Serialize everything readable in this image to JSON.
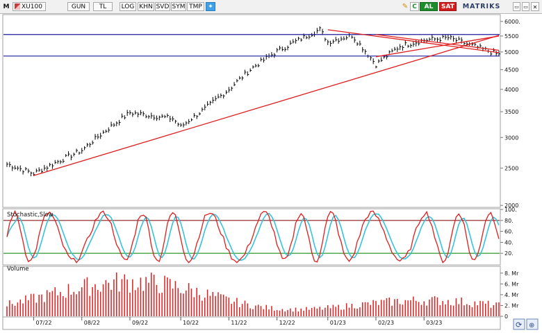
{
  "toolbar": {
    "mode_label": "M",
    "symbol": "XU100",
    "period": "GUN",
    "currency": "TL",
    "buttons": [
      "LOG",
      "KHN",
      "SVD",
      "SYM",
      "TMP"
    ],
    "c_label": "C",
    "buy_label": "AL",
    "sell_label": "SAT",
    "brand": "MATRIKS",
    "window_buttons": [
      "▭",
      "▭",
      "✕"
    ],
    "twitter_icon": "twitter-bird-icon",
    "pencil_icon": "pencil-icon"
  },
  "colors": {
    "price": "#000000",
    "horizontal_lines": "#1a1a9c",
    "trend_lines": "#e01c1c",
    "stoch_k": "#e01c1c",
    "stoch_d": "#34c3dc",
    "stoch_upper": "#8b1a1a",
    "stoch_lower": "#1a8c1a",
    "volume": "#e01c1c"
  },
  "chart_data": {
    "type": "line",
    "panes": {
      "price": {
        "title": "",
        "y_scale": "log",
        "y_ticks": [
          2000,
          2500,
          3000,
          3500,
          4000,
          4500,
          5000,
          5500,
          6000
        ],
        "y_tick_labels": [
          "2000",
          "2500",
          "3000",
          "3500",
          "4000",
          "4500",
          "5000",
          "5500",
          "6000."
        ],
        "ylim": [
          1985,
          6200
        ],
        "horizontal_levels": [
          5550,
          4880
        ],
        "trend_lines": [
          {
            "from": [
              "07/22",
              2390
            ],
            "to": [
              "03/23",
              5520
            ]
          },
          {
            "from": [
              "01/23",
              5710
            ],
            "to": [
              "03/23",
              4980
            ]
          },
          {
            "from": [
              "02/23",
              4860
            ],
            "to": [
              "03/23",
              5500
            ]
          },
          {
            "from": [
              "02/23",
              5550
            ],
            "to": [
              "03/23",
              5050
            ]
          }
        ],
        "series_keypoints": [
          [
            "start",
            2560
          ],
          [
            "07/22",
            2420
          ],
          [
            "08/22",
            2780
          ],
          [
            "09/22",
            3480
          ],
          [
            "end 09/22",
            3360
          ],
          [
            "10/22",
            3200
          ],
          [
            "mid 10/22",
            3560
          ],
          [
            "11/22",
            4000
          ],
          [
            "mid 11/22",
            4560
          ],
          [
            "12/22",
            5020
          ],
          [
            "mid 12/22",
            5410
          ],
          [
            "end 12/22",
            5720
          ],
          [
            "01/23",
            5310
          ],
          [
            "mid 01/23",
            5520
          ],
          [
            "02/23",
            4640
          ],
          [
            "mid 02/23",
            5180
          ],
          [
            "03/23",
            5370
          ],
          [
            "mid 03/23",
            5440
          ],
          [
            "end",
            4920
          ]
        ]
      },
      "stochastic": {
        "title": "Stochastic,Slow",
        "y_ticks": [
          20,
          40,
          60,
          80,
          100
        ],
        "y_tick_labels": [
          "20.",
          "40.",
          "60.",
          "80.",
          "100."
        ],
        "ylim": [
          0,
          100
        ],
        "levels": [
          80,
          20
        ]
      },
      "volume": {
        "title": "Volume",
        "y_ticks": [
          0,
          2,
          4,
          6,
          8
        ],
        "y_tick_labels": [
          "0",
          "2. Mr",
          "4. Mr",
          "6. Mr",
          "8. Mr"
        ],
        "ylim": [
          0,
          9
        ],
        "unit": "Mr"
      }
    },
    "x_ticks": [
      "07/22",
      "08/22",
      "09/22",
      "10/22",
      "11/22",
      "12/22",
      "01/23",
      "02/23",
      "03/23"
    ]
  }
}
